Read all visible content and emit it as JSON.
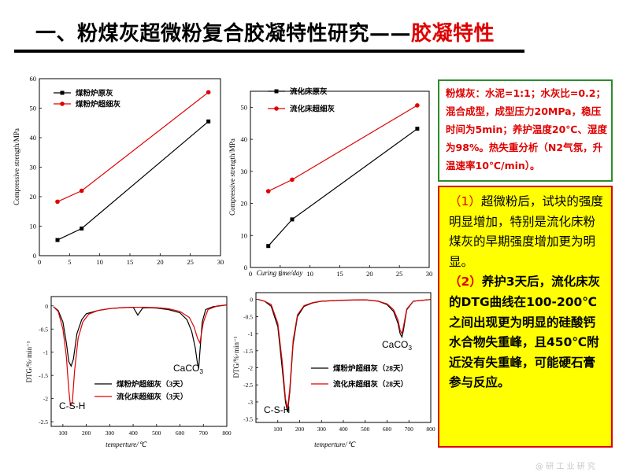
{
  "title": {
    "main": "一、粉煤灰超微粉复合胶凝特性研究——",
    "highlight": "胶凝特性"
  },
  "info_box": "粉煤灰：水泥=1:1；水灰比=0.2；混合成型，成型压力20MPa，稳压时间为5min；养护温度20℃、湿度为98%。热失重分析（N2气氛，升温速率10℃/min）。",
  "conclusions": {
    "p1": {
      "marker": "（1）",
      "text": "超微粉后，试块的强度明显增加，特别是流化床粉煤灰的早期强度增加更为明显。"
    },
    "p2": {
      "marker": "（2）",
      "text_a": "养护3天后，流化床灰的DTG曲线在100-200℃之间出现更为明显的硅酸钙水合物失重峰，且450℃附近没有失重峰，可能硬石膏参与反应。"
    }
  },
  "watermark": "@ 研 工 业 研 究",
  "chart_data": [
    {
      "type": "line",
      "ylabel": "Compressive strength/MPa",
      "xlim": [
        0,
        30
      ],
      "ylim": [
        0,
        60
      ],
      "xticks": [
        "0",
        "5",
        "10",
        "15",
        "20",
        "25",
        "30"
      ],
      "yticks": [
        "0",
        "10",
        "20",
        "30",
        "40",
        "50",
        "60"
      ],
      "legend_position": "top-left",
      "series": [
        {
          "name": "煤粉炉原灰",
          "color": "#000000",
          "marker": "square",
          "x": [
            3,
            7,
            28
          ],
          "y": [
            5.3,
            9.2,
            45.5
          ]
        },
        {
          "name": "煤粉炉超细灰",
          "color": "#e00000",
          "marker": "circle",
          "x": [
            3,
            7,
            28
          ],
          "y": [
            18.3,
            22.0,
            55.4
          ]
        }
      ]
    },
    {
      "type": "line",
      "ylabel": "Compressive strength/MPa",
      "xlabel": "Curing time/day",
      "xlim": [
        0,
        30
      ],
      "ylim": [
        0,
        55
      ],
      "xticks": [
        "0",
        "5",
        "10",
        "15",
        "20",
        "25",
        "30"
      ],
      "yticks": [
        "0",
        "10",
        "20",
        "30",
        "40",
        "50"
      ],
      "legend_position": "top-left",
      "series": [
        {
          "name": "流化床原灰",
          "color": "#000000",
          "marker": "square",
          "x": [
            3,
            7,
            28
          ],
          "y": [
            6.7,
            15.0,
            43.3
          ]
        },
        {
          "name": "流化床超细灰",
          "color": "#e00000",
          "marker": "circle",
          "x": [
            3,
            7,
            28
          ],
          "y": [
            23.8,
            27.4,
            50.6
          ]
        }
      ]
    },
    {
      "type": "line",
      "ylabel": "DTG/%·min⁻¹",
      "xlabel": "temperture/℃",
      "xlim": [
        50,
        800
      ],
      "ylim": [
        -2.6,
        0.2
      ],
      "xticks": [
        "100",
        "200",
        "300",
        "400",
        "500",
        "600",
        "700",
        "800"
      ],
      "yticks": [
        "0",
        "-0.5",
        "-1",
        "-1.5",
        "-2",
        "-2.5"
      ],
      "legend_position": "bottom-right",
      "annotations": [
        {
          "text": "CaCO",
          "sub": "3"
        },
        {
          "text": "C-S-H"
        }
      ],
      "series": [
        {
          "name": "煤粉炉超细灰（3天）",
          "color": "#000000",
          "x": [
            60,
            80,
            100,
            115,
            125,
            135,
            145,
            160,
            180,
            200,
            250,
            300,
            350,
            400,
            420,
            440,
            460,
            500,
            550,
            600,
            630,
            650,
            665,
            675,
            680,
            685,
            695,
            710,
            740,
            800
          ],
          "y": [
            -0.02,
            -0.1,
            -0.35,
            -0.8,
            -1.2,
            -1.3,
            -1.15,
            -0.6,
            -0.3,
            -0.17,
            -0.1,
            -0.06,
            -0.04,
            -0.03,
            -0.2,
            -0.05,
            -0.04,
            -0.05,
            -0.08,
            -0.15,
            -0.3,
            -0.55,
            -0.9,
            -1.25,
            -1.35,
            -1.0,
            -0.35,
            -0.08,
            -0.02,
            0.02
          ]
        },
        {
          "name": "流化床超细灰（3天）",
          "color": "#e00000",
          "x": [
            60,
            80,
            100,
            115,
            125,
            132,
            140,
            150,
            165,
            185,
            210,
            250,
            300,
            350,
            400,
            450,
            500,
            550,
            600,
            640,
            660,
            675,
            685,
            700,
            720,
            760,
            800
          ],
          "y": [
            -0.02,
            -0.12,
            -0.5,
            -1.1,
            -1.8,
            -2.15,
            -2.1,
            -1.4,
            -0.7,
            -0.35,
            -0.18,
            -0.1,
            -0.06,
            -0.04,
            -0.03,
            -0.03,
            -0.04,
            -0.06,
            -0.12,
            -0.25,
            -0.45,
            -0.7,
            -0.8,
            -0.35,
            -0.08,
            0.0,
            0.02
          ]
        }
      ]
    },
    {
      "type": "line",
      "ylabel": "DTG/%·min⁻¹",
      "xlabel": "temperture/℃",
      "xlim": [
        0,
        800
      ],
      "ylim": [
        -3.6,
        0.2
      ],
      "xticks": [
        "100",
        "200",
        "300",
        "400",
        "500",
        "600",
        "700",
        "800"
      ],
      "yticks": [
        "0",
        "-0.5",
        "-1",
        "-1.5",
        "-2",
        "-2.5",
        "-3",
        "-3.5"
      ],
      "legend_position": "bottom-right",
      "annotations": [
        {
          "text": "CaCO",
          "sub": "3"
        },
        {
          "text": "C-S-H"
        }
      ],
      "series": [
        {
          "name": "煤粉炉超细灰（28天）",
          "color": "#000000",
          "x": [
            10,
            40,
            70,
            100,
            120,
            135,
            145,
            155,
            170,
            190,
            220,
            260,
            300,
            400,
            500,
            560,
            600,
            630,
            650,
            660,
            668,
            675,
            690,
            720,
            800
          ],
          "y": [
            0.0,
            -0.05,
            -0.2,
            -0.8,
            -2.0,
            -3.0,
            -3.3,
            -2.7,
            -1.3,
            -0.5,
            -0.2,
            -0.1,
            -0.05,
            -0.02,
            -0.01,
            -0.05,
            -0.15,
            -0.35,
            -0.7,
            -1.0,
            -1.1,
            -0.9,
            -0.3,
            -0.05,
            0.0
          ]
        },
        {
          "name": "流化床超细灰（28天）",
          "color": "#e00000",
          "x": [
            10,
            40,
            70,
            100,
            120,
            135,
            145,
            155,
            170,
            190,
            220,
            260,
            300,
            400,
            500,
            560,
            600,
            630,
            650,
            660,
            668,
            675,
            690,
            720,
            800
          ],
          "y": [
            0.0,
            -0.05,
            -0.15,
            -0.7,
            -1.8,
            -2.9,
            -3.2,
            -2.6,
            -1.2,
            -0.45,
            -0.18,
            -0.09,
            -0.05,
            -0.02,
            -0.01,
            -0.05,
            -0.13,
            -0.3,
            -0.6,
            -0.9,
            -1.0,
            -0.8,
            -0.28,
            -0.05,
            0.0
          ]
        }
      ]
    }
  ]
}
